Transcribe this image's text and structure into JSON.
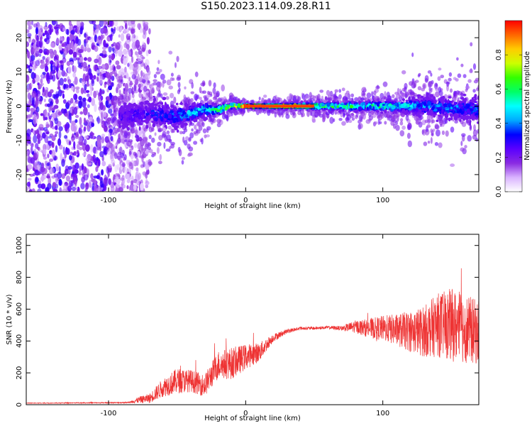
{
  "title": "S150.2023.114.09.28.R11",
  "chart_data": [
    {
      "type": "heatmap",
      "xlabel": "Height of straight line (km)",
      "ylabel": "Frequency (Hz)",
      "xlim": [
        -160,
        170
      ],
      "ylim": [
        -25,
        25
      ],
      "xticks": [
        -100,
        0,
        100
      ],
      "yticks": [
        -20,
        -10,
        0,
        10,
        20
      ],
      "colorbar": {
        "label": "Normalized spectral amplitude",
        "range": [
          0.0,
          1.0
        ],
        "ticks": [
          0.0,
          0.2,
          0.4,
          0.6,
          0.8
        ],
        "colormap": [
          "#ffffff",
          "#d9b3ff",
          "#8a2be2",
          "#5a00ff",
          "#0000ff",
          "#00aaff",
          "#00ffff",
          "#00ff66",
          "#33ff00",
          "#ccff00",
          "#ffcc00",
          "#ff6600",
          "#ff0000"
        ]
      },
      "ridge": {
        "description": "frequency centerline vs height",
        "x": [
          -90,
          -70,
          -50,
          -30,
          -20,
          -10,
          0,
          50,
          100,
          130,
          170
        ],
        "center_hz": [
          -3,
          -2,
          -3,
          -1,
          -1,
          0,
          0,
          0,
          0,
          0,
          -1
        ],
        "spread_hz": [
          4,
          4,
          4,
          2.5,
          1.5,
          1,
          0.4,
          1,
          1.5,
          3,
          4
        ],
        "peak_amplitude": [
          0.25,
          0.3,
          0.35,
          0.5,
          0.6,
          0.7,
          0.95,
          0.6,
          0.55,
          0.4,
          0.35
        ]
      },
      "noise_region": {
        "x_from": -160,
        "x_to": -85,
        "amplitude": 0.25
      }
    },
    {
      "type": "line",
      "xlabel": "Height of straight line (km)",
      "ylabel": "SNR (10 * v/v)",
      "xlim": [
        -160,
        170
      ],
      "ylim": [
        0,
        1070
      ],
      "xticks": [
        -100,
        0,
        100
      ],
      "yticks": [
        0,
        200,
        400,
        600,
        800,
        1000
      ],
      "color": "#ee3333",
      "series": [
        {
          "x": [
            -160,
            -140,
            -120,
            -100,
            -85,
            -78,
            -70,
            -60,
            -50,
            -40,
            -30,
            -20,
            -10,
            0,
            10,
            20,
            30,
            40,
            50,
            60,
            70,
            80,
            90,
            100,
            110,
            120,
            130,
            140,
            150,
            160,
            170
          ],
          "values": [
            10,
            10,
            12,
            12,
            14,
            30,
            40,
            110,
            150,
            150,
            120,
            250,
            260,
            300,
            330,
            420,
            460,
            480,
            480,
            485,
            480,
            490,
            480,
            480,
            470,
            460,
            460,
            500,
            500,
            480,
            450
          ],
          "noise": [
            2,
            2,
            3,
            3,
            4,
            20,
            30,
            60,
            80,
            70,
            70,
            90,
            100,
            80,
            60,
            25,
            15,
            10,
            10,
            10,
            15,
            40,
            60,
            80,
            100,
            130,
            160,
            200,
            230,
            220,
            200
          ]
        }
      ]
    }
  ]
}
